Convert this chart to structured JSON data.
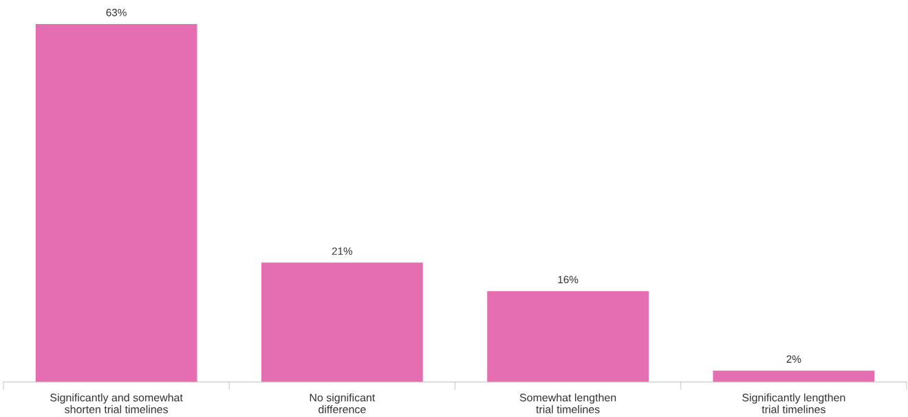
{
  "chart_data": {
    "type": "bar",
    "categories": [
      "Significantly and somewhat\nshorten trial timelines",
      "No significant\ndifference",
      "Somewhat lengthen\ntrial timelines",
      "Significantly lengthen\ntrial timelines"
    ],
    "values": [
      63,
      21,
      16,
      2
    ],
    "value_labels": [
      "63%",
      "21%",
      "16%",
      "2%"
    ],
    "color": "#e46eb0",
    "tick_labels": "x",
    "grid": false,
    "legend": false
  }
}
